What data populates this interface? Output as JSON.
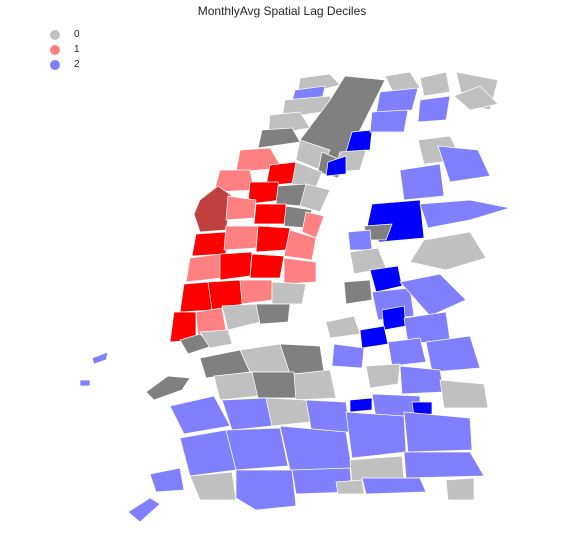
{
  "title": "MonthlyAvg Spatial Lag Deciles",
  "legend": [
    {
      "label": "0",
      "color": "#c0c0c0"
    },
    {
      "label": "1",
      "color": "#ff8080"
    },
    {
      "label": "2",
      "color": "#8080ff"
    }
  ],
  "class_colors": {
    "0": [
      "#c0c0c0",
      "#808080"
    ],
    "1": [
      "#ff8080",
      "#ff0000",
      "#c04040"
    ],
    "2": [
      "#8080ff",
      "#0000ff"
    ]
  }
}
